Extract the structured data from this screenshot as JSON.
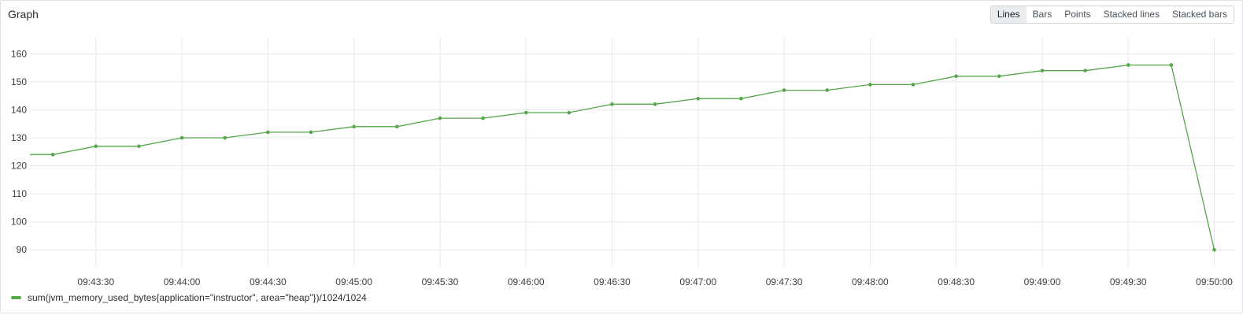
{
  "panel": {
    "title": "Graph"
  },
  "chart_types": [
    {
      "label": "Lines",
      "active": true
    },
    {
      "label": "Bars",
      "active": false
    },
    {
      "label": "Points",
      "active": false
    },
    {
      "label": "Stacked lines",
      "active": false
    },
    {
      "label": "Stacked bars",
      "active": false
    }
  ],
  "colors": {
    "series": "#56a64b",
    "grid": "#e6e8eb",
    "text": "#3a3f44"
  },
  "chart_data": {
    "type": "line",
    "title": "",
    "xlabel": "",
    "ylabel": "",
    "ylim": [
      85,
      166
    ],
    "xlim": [
      "09:43:07",
      "09:50:07"
    ],
    "y_ticks": [
      90,
      100,
      110,
      120,
      130,
      140,
      150,
      160
    ],
    "x_ticks": [
      "09:43:30",
      "09:44:00",
      "09:44:30",
      "09:45:00",
      "09:45:30",
      "09:46:00",
      "09:46:30",
      "09:47:00",
      "09:47:30",
      "09:48:00",
      "09:48:30",
      "09:49:00",
      "09:49:30",
      "09:50:00"
    ],
    "grid": true,
    "legend_position": "bottom-left",
    "series": [
      {
        "name": "sum(jvm_memory_used_bytes{application=\"instructor\", area=\"heap\"})/1024/1024",
        "color": "#56a64b",
        "start_value": 124,
        "points": [
          {
            "x": "09:43:15",
            "y": 124
          },
          {
            "x": "09:43:30",
            "y": 127
          },
          {
            "x": "09:43:45",
            "y": 127
          },
          {
            "x": "09:44:00",
            "y": 130
          },
          {
            "x": "09:44:15",
            "y": 130
          },
          {
            "x": "09:44:30",
            "y": 132
          },
          {
            "x": "09:44:45",
            "y": 132
          },
          {
            "x": "09:45:00",
            "y": 134
          },
          {
            "x": "09:45:15",
            "y": 134
          },
          {
            "x": "09:45:30",
            "y": 137
          },
          {
            "x": "09:45:45",
            "y": 137
          },
          {
            "x": "09:46:00",
            "y": 139
          },
          {
            "x": "09:46:15",
            "y": 139
          },
          {
            "x": "09:46:30",
            "y": 142
          },
          {
            "x": "09:46:45",
            "y": 142
          },
          {
            "x": "09:47:00",
            "y": 144
          },
          {
            "x": "09:47:15",
            "y": 144
          },
          {
            "x": "09:47:30",
            "y": 147
          },
          {
            "x": "09:47:45",
            "y": 147
          },
          {
            "x": "09:48:00",
            "y": 149
          },
          {
            "x": "09:48:15",
            "y": 149
          },
          {
            "x": "09:48:30",
            "y": 152
          },
          {
            "x": "09:48:45",
            "y": 152
          },
          {
            "x": "09:49:00",
            "y": 154
          },
          {
            "x": "09:49:15",
            "y": 154
          },
          {
            "x": "09:49:30",
            "y": 156
          },
          {
            "x": "09:49:45",
            "y": 156
          },
          {
            "x": "09:50:00",
            "y": 90
          }
        ]
      }
    ]
  }
}
